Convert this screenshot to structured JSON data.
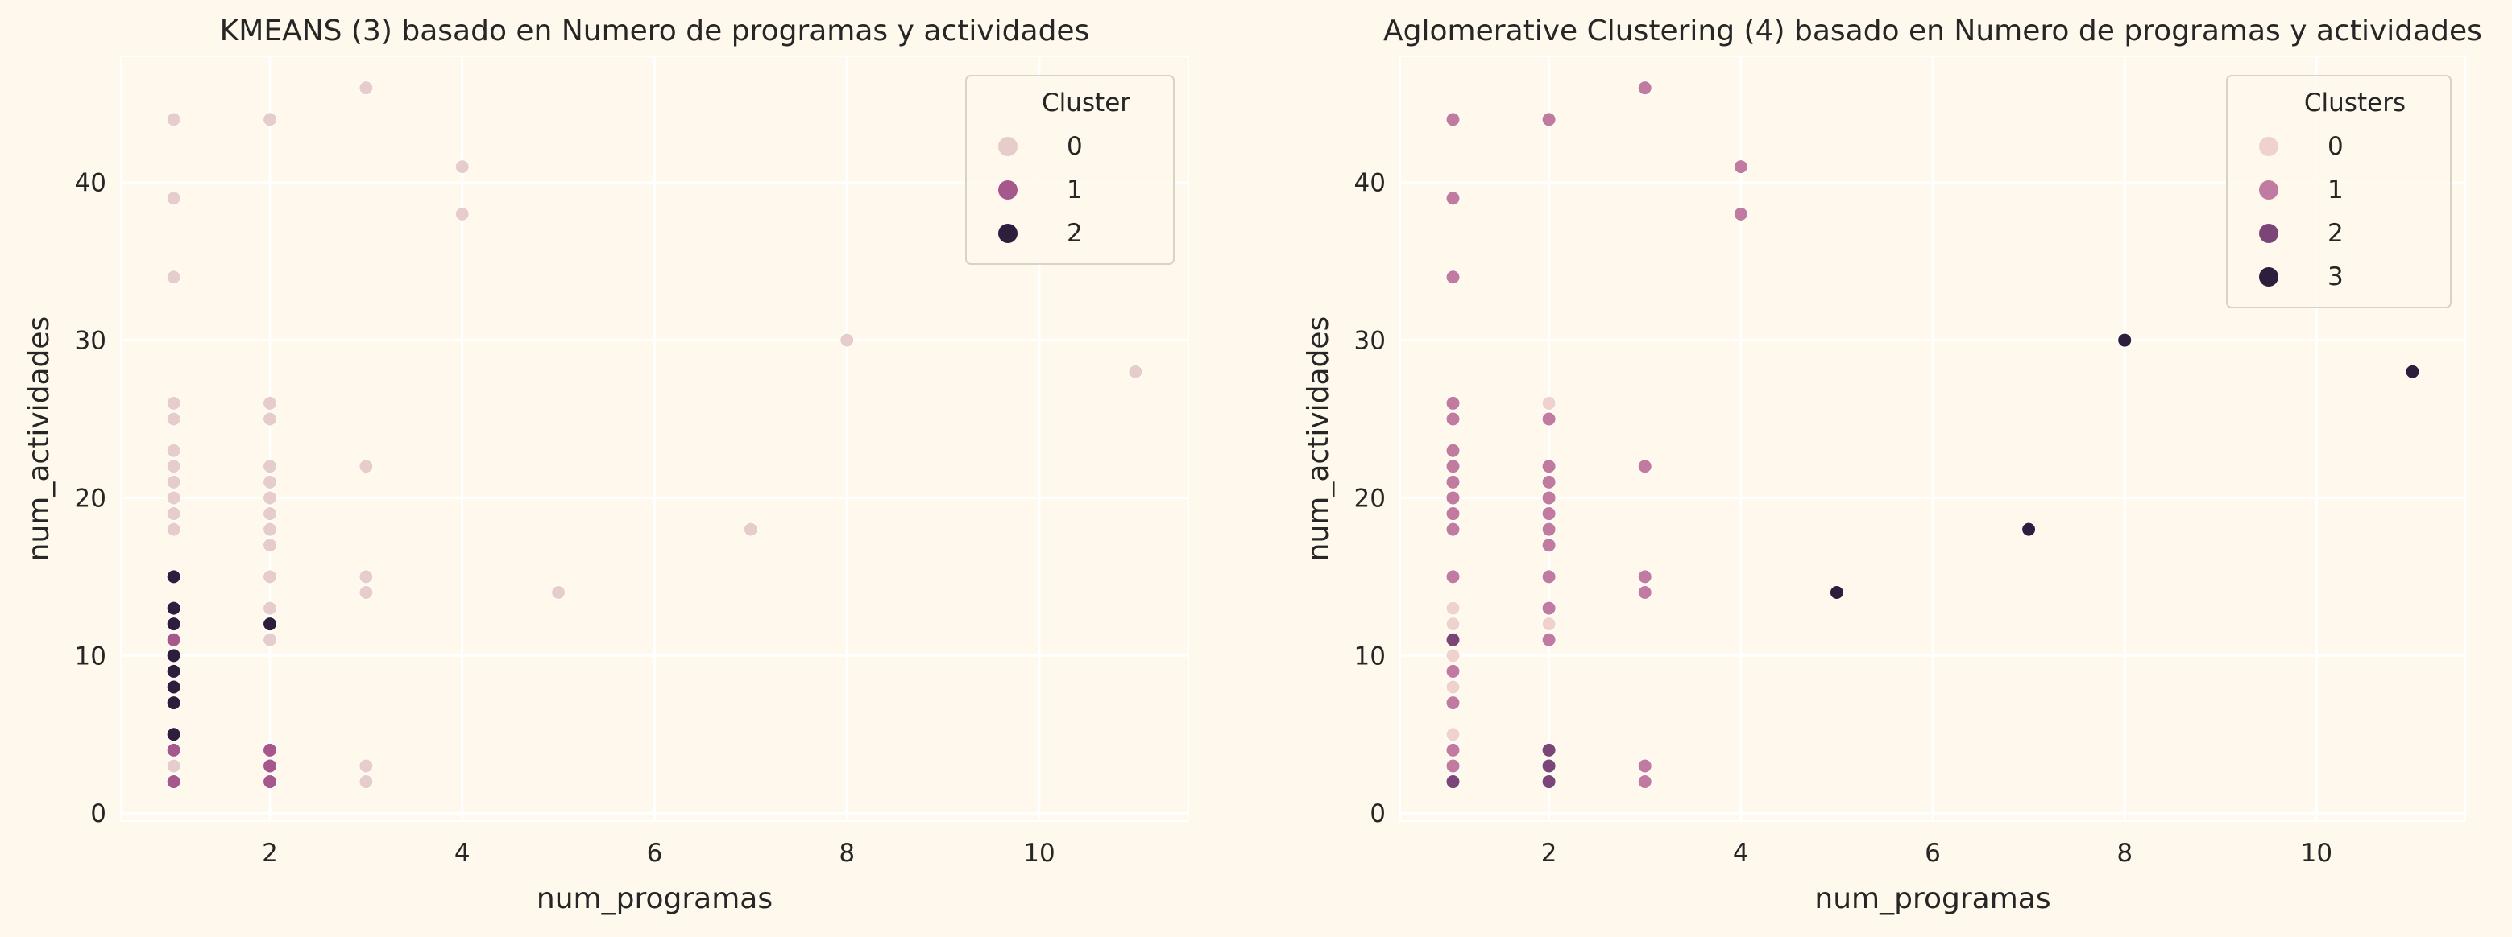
{
  "chart_data": [
    {
      "type": "scatter",
      "title": "KMEANS (3) basado en Numero de programas y actividades",
      "xlabel": "num_programas",
      "ylabel": "num_actividades",
      "xlim": [
        0.45,
        11.55
      ],
      "ylim": [
        -0.5,
        48.0
      ],
      "xticks": [
        2,
        4,
        6,
        8,
        10
      ],
      "yticks": [
        0,
        10,
        20,
        30,
        40
      ],
      "grid": true,
      "legend_title": "Cluster",
      "legend_position": "top-right",
      "series": [
        {
          "name": "0",
          "color": "#e6cdcb",
          "points": [
            [
              1,
              44
            ],
            [
              1,
              39
            ],
            [
              1,
              34
            ],
            [
              1,
              26
            ],
            [
              1,
              25
            ],
            [
              1,
              23
            ],
            [
              1,
              22
            ],
            [
              1,
              21
            ],
            [
              1,
              20
            ],
            [
              1,
              19
            ],
            [
              1,
              18
            ],
            [
              1,
              3
            ],
            [
              2,
              44
            ],
            [
              2,
              26
            ],
            [
              2,
              25
            ],
            [
              2,
              22
            ],
            [
              2,
              21
            ],
            [
              2,
              20
            ],
            [
              2,
              19
            ],
            [
              2,
              18
            ],
            [
              2,
              17
            ],
            [
              2,
              15
            ],
            [
              2,
              13
            ],
            [
              2,
              11
            ],
            [
              3,
              46
            ],
            [
              3,
              22
            ],
            [
              3,
              15
            ],
            [
              3,
              14
            ],
            [
              3,
              3
            ],
            [
              3,
              2
            ],
            [
              4,
              41
            ],
            [
              4,
              38
            ],
            [
              5,
              14
            ],
            [
              7,
              18
            ],
            [
              8,
              30
            ],
            [
              11,
              28
            ]
          ]
        },
        {
          "name": "1",
          "color": "#a6588d",
          "points": [
            [
              1,
              11
            ],
            [
              1,
              4
            ],
            [
              1,
              2
            ],
            [
              2,
              4
            ],
            [
              2,
              3
            ],
            [
              2,
              2
            ]
          ]
        },
        {
          "name": "2",
          "color": "#2d1e3e",
          "points": [
            [
              1,
              15
            ],
            [
              1,
              13
            ],
            [
              1,
              12
            ],
            [
              1,
              10
            ],
            [
              1,
              9
            ],
            [
              1,
              8
            ],
            [
              1,
              7
            ],
            [
              1,
              5
            ],
            [
              2,
              12
            ]
          ]
        }
      ]
    },
    {
      "type": "scatter",
      "title": "Aglomerative Clustering (4) basado en Numero de programas y actividades",
      "xlabel": "num_programas",
      "ylabel": "num_actividades",
      "xlim": [
        0.45,
        11.55
      ],
      "ylim": [
        -0.5,
        48.0
      ],
      "xticks": [
        2,
        4,
        6,
        8,
        10
      ],
      "yticks": [
        0,
        10,
        20,
        30,
        40
      ],
      "grid": true,
      "legend_title": "Clusters",
      "legend_position": "top-right",
      "series": [
        {
          "name": "0",
          "color": "#efd1cd",
          "points": [
            [
              1,
              13
            ],
            [
              1,
              12
            ],
            [
              1,
              10
            ],
            [
              1,
              8
            ],
            [
              1,
              5
            ],
            [
              2,
              26
            ],
            [
              2,
              12
            ]
          ]
        },
        {
          "name": "1",
          "color": "#c27ba0",
          "points": [
            [
              1,
              44
            ],
            [
              1,
              39
            ],
            [
              1,
              34
            ],
            [
              1,
              26
            ],
            [
              1,
              25
            ],
            [
              1,
              23
            ],
            [
              1,
              22
            ],
            [
              1,
              21
            ],
            [
              1,
              20
            ],
            [
              1,
              19
            ],
            [
              1,
              18
            ],
            [
              1,
              15
            ],
            [
              1,
              9
            ],
            [
              1,
              7
            ],
            [
              1,
              4
            ],
            [
              1,
              3
            ],
            [
              2,
              44
            ],
            [
              2,
              25
            ],
            [
              2,
              22
            ],
            [
              2,
              21
            ],
            [
              2,
              20
            ],
            [
              2,
              19
            ],
            [
              2,
              18
            ],
            [
              2,
              17
            ],
            [
              2,
              15
            ],
            [
              2,
              13
            ],
            [
              2,
              11
            ],
            [
              3,
              46
            ],
            [
              3,
              22
            ],
            [
              3,
              15
            ],
            [
              3,
              14
            ],
            [
              3,
              3
            ],
            [
              3,
              2
            ],
            [
              4,
              41
            ],
            [
              4,
              38
            ]
          ]
        },
        {
          "name": "2",
          "color": "#7c4578",
          "points": [
            [
              1,
              11
            ],
            [
              1,
              2
            ],
            [
              2,
              4
            ],
            [
              2,
              3
            ],
            [
              2,
              2
            ]
          ]
        },
        {
          "name": "3",
          "color": "#2d1e3e",
          "points": [
            [
              5,
              14
            ],
            [
              7,
              18
            ],
            [
              8,
              30
            ],
            [
              11,
              28
            ]
          ]
        }
      ]
    }
  ]
}
